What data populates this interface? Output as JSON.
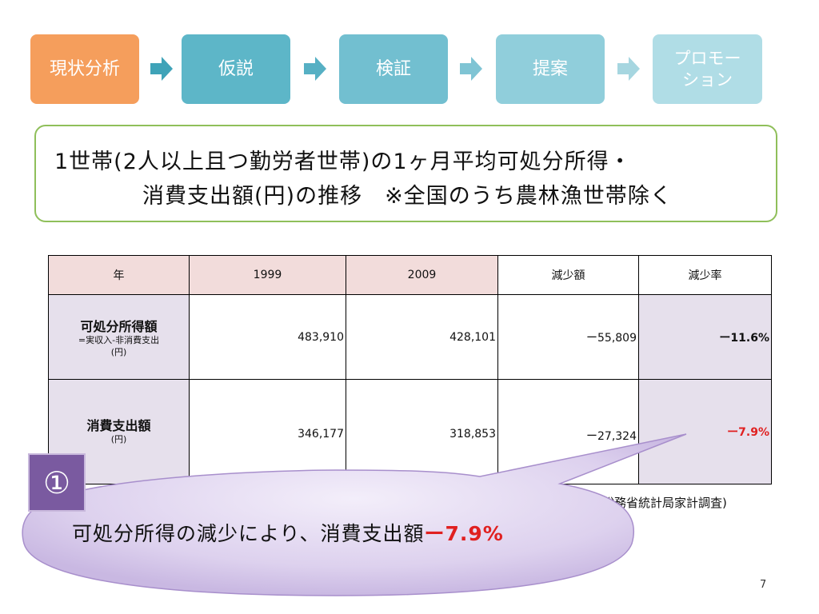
{
  "flow": {
    "steps": [
      "現状分析",
      "仮説",
      "検証",
      "提案",
      "プロモー\nション"
    ],
    "colors": [
      "#f59e5c",
      "#5db6c8",
      "#72bfd0",
      "#90cedb",
      "#b0dde6"
    ]
  },
  "title": {
    "line1": "1世帯(2人以上且つ勤労者世帯)の1ヶ月平均可処分所得・",
    "line2": "消費支出額(円)の推移　※全国のうち農林漁世帯除く"
  },
  "table": {
    "headers": [
      "年",
      "1999",
      "2009",
      "減少額",
      "減少率"
    ],
    "rows": [
      {
        "label": "可処分所得額",
        "sub1": "=実収入-非消費支出",
        "sub2": "(円)",
        "v1999": "483,910",
        "v2009": "428,101",
        "decrease": "ー55,809",
        "rate": "ー11.6%"
      },
      {
        "label": "消費支出額",
        "sub1": "(円)",
        "v1999": "346,177",
        "v2009": "318,853",
        "decrease": "ー27,324",
        "rate": "ー7.9%"
      }
    ]
  },
  "source": "出典:総務省統計局家計調査)",
  "callout": {
    "badge": "①",
    "text": "可処分所得の減少により、消費支出額",
    "highlight": "ー7.9%"
  },
  "page_number": "7"
}
